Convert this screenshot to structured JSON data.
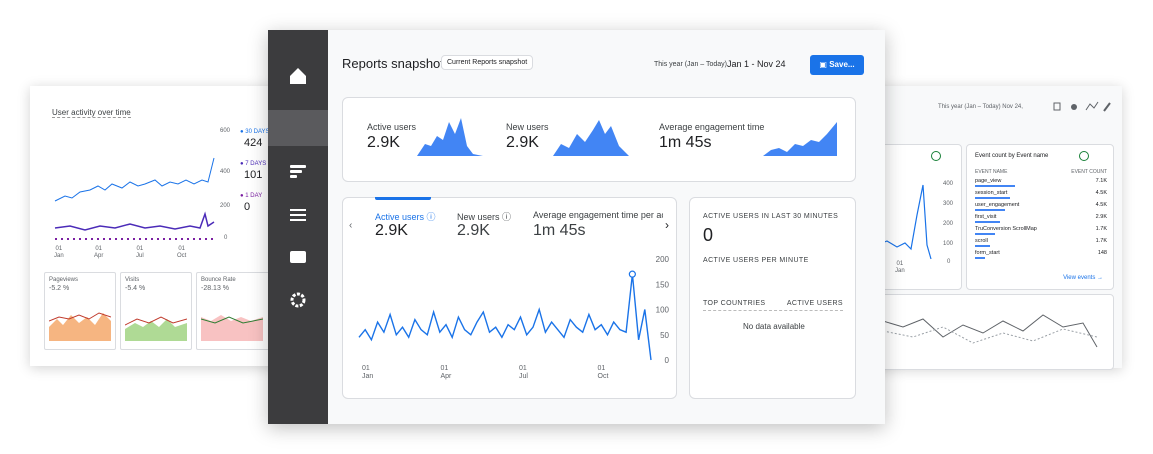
{
  "left_panel": {
    "title": "User activity over time",
    "yticks": [
      "600",
      "400",
      "200",
      "0"
    ],
    "legend": [
      {
        "label": "30 DAYS",
        "value": "424"
      },
      {
        "label": "7 DAYS",
        "value": "101"
      },
      {
        "label": "1 DAY",
        "value": "0"
      }
    ],
    "x_labels": [
      {
        "day": "01",
        "month": "Jan"
      },
      {
        "day": "01",
        "month": "Apr"
      },
      {
        "day": "01",
        "month": "Jul"
      },
      {
        "day": "01",
        "month": "Oct"
      }
    ],
    "cards": [
      {
        "name": "Pageviews",
        "change": "-5.2 %"
      },
      {
        "name": "Visits",
        "change": "-5.4 %"
      },
      {
        "name": "Bounce Rate",
        "change": "-28.13 %"
      }
    ]
  },
  "header": {
    "title": "Reports snapshot",
    "chip": "Current Reports snapshot",
    "range_label": "This year (Jan – Today)",
    "range": "Jan 1 - Nov 24",
    "button": "Save..."
  },
  "summary": [
    {
      "name": "Active users",
      "value": "2.9K"
    },
    {
      "name": "New users",
      "value": "2.9K"
    },
    {
      "name": "Average engagement time",
      "value": "1m 45s"
    }
  ],
  "chart": {
    "type": "line",
    "tabs": [
      {
        "name": "Active users",
        "value": "2.9K"
      },
      {
        "name": "New users",
        "value": "2.9K"
      },
      {
        "name": "Average engagement time per active",
        "value": "1m 45s"
      }
    ],
    "x_labels": [
      {
        "day": "01",
        "month": "Jan"
      },
      {
        "day": "01",
        "month": "Apr"
      },
      {
        "day": "01",
        "month": "Jul"
      },
      {
        "day": "01",
        "month": "Oct"
      }
    ],
    "ylim": [
      0,
      200
    ],
    "yticks": [
      0,
      50,
      100,
      150,
      200
    ],
    "color": "#1a73e8",
    "values": [
      45,
      60,
      40,
      75,
      55,
      90,
      50,
      65,
      45,
      80,
      60,
      50,
      95,
      55,
      70,
      45,
      85,
      60,
      50,
      75,
      95,
      55,
      65,
      45,
      70,
      60,
      85,
      50,
      65,
      100,
      55,
      75,
      60,
      45,
      80,
      65,
      55,
      90,
      60,
      70,
      50,
      75,
      60,
      55,
      170,
      40,
      100,
      0
    ]
  },
  "realtime": {
    "title": "ACTIVE USERS IN LAST 30 MINUTES",
    "value": "0",
    "per_minute": "ACTIVE USERS PER MINUTE",
    "col1": "TOP COUNTRIES",
    "col2": "ACTIVE USERS",
    "empty": "No data available"
  },
  "right_panel": {
    "range": "This year (Jan – Today)  Nov 24,",
    "yticks": [
      "400",
      "300",
      "200",
      "100",
      "0"
    ],
    "x_label": {
      "day": "01",
      "month": "Jan"
    },
    "table_title": "Event count by Event name",
    "col1": "EVENT NAME",
    "col2": "EVENT COUNT",
    "rows": [
      [
        "page_view",
        "7.1K"
      ],
      [
        "session_start",
        "4.5K"
      ],
      [
        "user_engagement",
        "4.5K"
      ],
      [
        "first_visit",
        "2.9K"
      ],
      [
        "TruConversion ScrollMap",
        "1.7K"
      ],
      [
        "scroll",
        "1.7K"
      ],
      [
        "form_start",
        "148"
      ]
    ],
    "link": "View events"
  }
}
